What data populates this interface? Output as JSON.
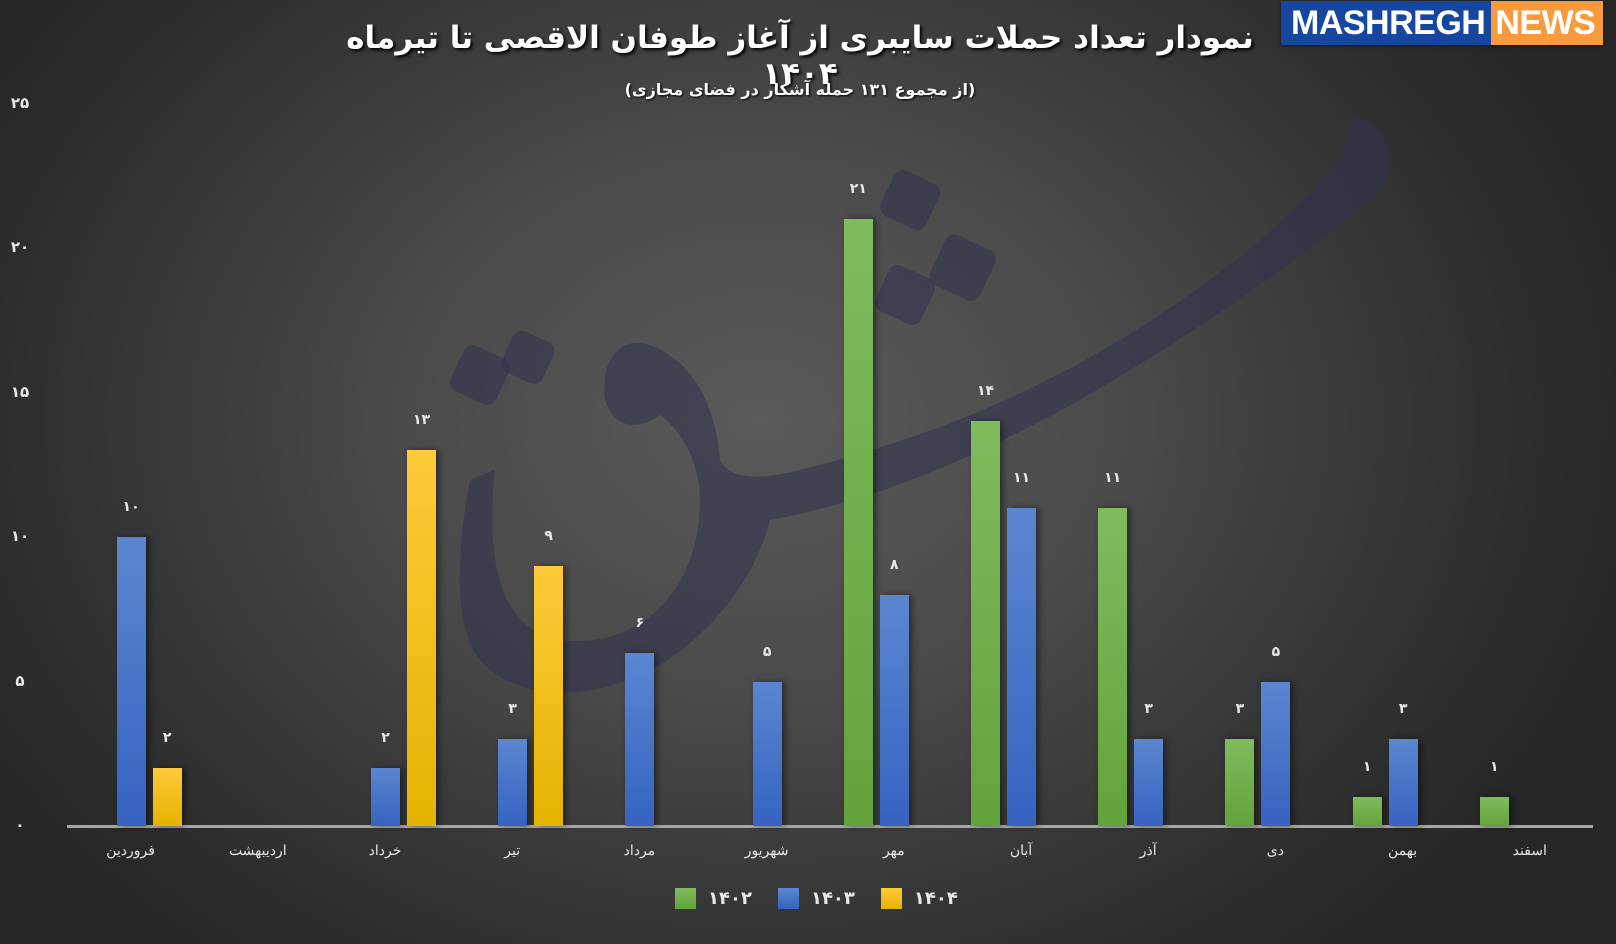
{
  "header": {
    "title": "نمودار تعداد حملات سایبری از آغاز طوفان الاقصی تا تیرماه ۱۴۰۴",
    "subtitle": "(از مجموع ۱۳۱ حمله آشکار در فضای مجازی)",
    "logo_part1": "MASHREGH",
    "logo_part2": "NEWS",
    "watermark": "مشرق"
  },
  "colors": {
    "1402": "#70ad47",
    "1403": "#4472c4",
    "1404": "#ffc000",
    "logo_blue": "#17469e",
    "logo_orange": "#f99a3c"
  },
  "y_ticks": [
    "۰",
    "۵",
    "۱۰",
    "۱۵",
    "۲۰",
    "۲۵"
  ],
  "x_labels": [
    "فروردین",
    "اردیبهشت",
    "خرداد",
    "تیر",
    "مرداد",
    "شهریور",
    "مهر",
    "آبان",
    "آذر",
    "دی",
    "بهمن",
    "اسفند"
  ],
  "legend": [
    "۱۴۰۲",
    "۱۴۰۳",
    "۱۴۰۴"
  ],
  "chart_data": {
    "type": "bar",
    "title": "نمودار تعداد حملات سایبری از آغاز طوفان الاقصی تا تیرماه ۱۴۰۴",
    "subtitle": "(از مجموع ۱۳۱ حمله آشکار در فضای مجازی)",
    "xlabel": "",
    "ylabel": "",
    "ylim": [
      0,
      25
    ],
    "yticks": [
      0,
      5,
      10,
      15,
      20,
      25
    ],
    "grid": false,
    "legend_position": "bottom",
    "categories": [
      "فروردین",
      "اردیبهشت",
      "خرداد",
      "تیر",
      "مرداد",
      "شهریور",
      "مهر",
      "آبان",
      "آذر",
      "دی",
      "بهمن",
      "اسفند"
    ],
    "series": [
      {
        "name": "۱۴۰۲",
        "color": "#70ad47",
        "values": [
          null,
          null,
          null,
          null,
          null,
          null,
          21,
          14,
          11,
          3,
          1,
          1
        ]
      },
      {
        "name": "۱۴۰۳",
        "color": "#4472c4",
        "values": [
          10,
          null,
          2,
          3,
          6,
          5,
          8,
          11,
          3,
          5,
          3,
          null
        ]
      },
      {
        "name": "۱۴۰۴",
        "color": "#ffc000",
        "values": [
          2,
          null,
          13,
          9,
          null,
          null,
          null,
          null,
          null,
          null,
          null,
          null
        ]
      }
    ],
    "data_labels": true
  }
}
